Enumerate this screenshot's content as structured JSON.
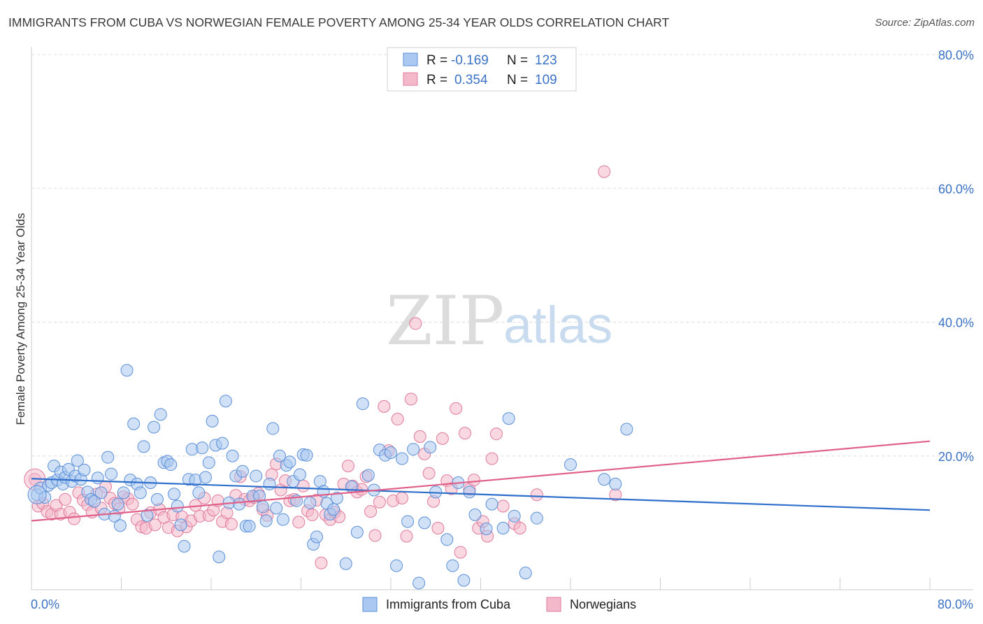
{
  "title": "IMMIGRANTS FROM CUBA VS NORWEGIAN FEMALE POVERTY AMONG 25-34 YEAR OLDS CORRELATION CHART",
  "source": "Source: ZipAtlas.com",
  "watermark": {
    "zip": "ZIP",
    "atlas": "atlas"
  },
  "colors": {
    "cuba_fill": "#aac8f0",
    "cuba_stroke": "#5b8fd8",
    "cuba_line": "#2f6fcc",
    "nor_fill": "#f4b8cb",
    "nor_stroke": "#e07a9c",
    "nor_line": "#e0608a",
    "axis_text": "#3b72c4",
    "grid": "#dddddd"
  },
  "legend": {
    "r_label": "R =",
    "n_label": "N =",
    "rows": [
      {
        "r": "-0.169",
        "n": "123"
      },
      {
        "r": "0.354",
        "n": "109"
      }
    ]
  },
  "chart_data": {
    "type": "scatter",
    "xlabel": "",
    "ylabel": "Female Poverty Among 25-34 Year Olds",
    "xlim": [
      0,
      80
    ],
    "ylim": [
      0,
      80
    ],
    "x_tick_labels": [
      "0.0%",
      "80.0%"
    ],
    "y_tick_values": [
      20,
      40,
      60,
      80
    ],
    "y_tick_labels": [
      "20.0%",
      "40.0%",
      "60.0%",
      "80.0%"
    ],
    "series": [
      {
        "name": "Immigrants from Cuba",
        "trend": {
          "x": [
            0,
            80
          ],
          "y": [
            16.6,
            11.9
          ]
        },
        "points": [
          [
            0.5,
            14.2
          ],
          [
            0.8,
            15.2
          ],
          [
            1.2,
            13.8
          ],
          [
            1.5,
            15.6
          ],
          [
            1.8,
            16.0
          ],
          [
            2.0,
            18.5
          ],
          [
            2.3,
            16.4
          ],
          [
            2.6,
            17.6
          ],
          [
            2.8,
            15.8
          ],
          [
            3.0,
            16.8
          ],
          [
            3.3,
            18.0
          ],
          [
            3.6,
            16.2
          ],
          [
            3.9,
            17.0
          ],
          [
            4.1,
            19.3
          ],
          [
            4.4,
            16.5
          ],
          [
            4.7,
            17.9
          ],
          [
            5.0,
            14.6
          ],
          [
            5.3,
            13.5
          ],
          [
            5.6,
            13.2
          ],
          [
            5.9,
            16.7
          ],
          [
            6.2,
            14.5
          ],
          [
            6.5,
            11.3
          ],
          [
            6.8,
            19.8
          ],
          [
            7.1,
            17.3
          ],
          [
            7.4,
            11.0
          ],
          [
            7.7,
            12.8
          ],
          [
            7.9,
            9.6
          ],
          [
            8.2,
            14.5
          ],
          [
            8.5,
            32.8
          ],
          [
            8.8,
            16.4
          ],
          [
            9.1,
            24.8
          ],
          [
            9.4,
            15.8
          ],
          [
            9.7,
            14.5
          ],
          [
            10.0,
            21.4
          ],
          [
            10.3,
            11.1
          ],
          [
            10.6,
            16.0
          ],
          [
            10.9,
            24.3
          ],
          [
            11.2,
            13.5
          ],
          [
            11.5,
            26.2
          ],
          [
            11.8,
            19.0
          ],
          [
            12.1,
            19.2
          ],
          [
            12.4,
            18.7
          ],
          [
            12.7,
            14.3
          ],
          [
            13.0,
            12.5
          ],
          [
            13.3,
            9.7
          ],
          [
            13.6,
            6.5
          ],
          [
            14.0,
            16.5
          ],
          [
            14.3,
            21.0
          ],
          [
            14.6,
            16.4
          ],
          [
            14.9,
            14.5
          ],
          [
            15.2,
            21.2
          ],
          [
            15.5,
            16.8
          ],
          [
            15.8,
            19.0
          ],
          [
            16.1,
            25.2
          ],
          [
            16.4,
            21.6
          ],
          [
            16.7,
            4.9
          ],
          [
            17.0,
            21.9
          ],
          [
            17.3,
            28.2
          ],
          [
            17.6,
            13.0
          ],
          [
            17.9,
            20.0
          ],
          [
            18.2,
            17.0
          ],
          [
            18.5,
            12.8
          ],
          [
            18.8,
            17.7
          ],
          [
            19.1,
            9.5
          ],
          [
            19.4,
            9.5
          ],
          [
            19.7,
            14.0
          ],
          [
            20.0,
            17.0
          ],
          [
            20.3,
            14.0
          ],
          [
            20.6,
            12.4
          ],
          [
            20.9,
            10.3
          ],
          [
            21.2,
            15.8
          ],
          [
            21.5,
            24.1
          ],
          [
            21.8,
            12.2
          ],
          [
            22.1,
            20.0
          ],
          [
            22.4,
            10.5
          ],
          [
            22.7,
            18.6
          ],
          [
            23.0,
            19.1
          ],
          [
            23.3,
            16.2
          ],
          [
            23.6,
            13.3
          ],
          [
            23.9,
            17.2
          ],
          [
            24.2,
            20.2
          ],
          [
            24.5,
            20.1
          ],
          [
            24.8,
            13.0
          ],
          [
            25.1,
            6.8
          ],
          [
            25.4,
            7.9
          ],
          [
            25.7,
            16.2
          ],
          [
            26.0,
            14.7
          ],
          [
            26.3,
            12.9
          ],
          [
            26.6,
            11.3
          ],
          [
            26.9,
            12.0
          ],
          [
            27.2,
            13.7
          ],
          [
            28.0,
            3.9
          ],
          [
            28.5,
            15.4
          ],
          [
            29.0,
            8.6
          ],
          [
            29.5,
            27.8
          ],
          [
            30.0,
            17.1
          ],
          [
            30.5,
            14.9
          ],
          [
            31.0,
            20.9
          ],
          [
            31.5,
            20.1
          ],
          [
            32.0,
            20.5
          ],
          [
            32.5,
            3.6
          ],
          [
            33.0,
            19.6
          ],
          [
            33.5,
            10.2
          ],
          [
            34.0,
            21.0
          ],
          [
            34.5,
            1.0
          ],
          [
            35.0,
            10.0
          ],
          [
            35.5,
            21.3
          ],
          [
            36.0,
            14.6
          ],
          [
            37.0,
            7.5
          ],
          [
            37.5,
            3.6
          ],
          [
            38.0,
            16.0
          ],
          [
            38.5,
            1.4
          ],
          [
            39.0,
            14.6
          ],
          [
            39.5,
            11.2
          ],
          [
            40.5,
            9.1
          ],
          [
            41.0,
            12.8
          ],
          [
            42.0,
            9.2
          ],
          [
            42.5,
            25.6
          ],
          [
            43.0,
            11.0
          ],
          [
            44.0,
            2.5
          ],
          [
            45.0,
            10.7
          ],
          [
            48.0,
            18.7
          ],
          [
            51.0,
            16.5
          ],
          [
            52.0,
            15.8
          ],
          [
            53.0,
            24.0
          ]
        ]
      },
      {
        "name": "Norwegians",
        "trend": {
          "x": [
            0,
            80
          ],
          "y": [
            10.3,
            22.2
          ]
        },
        "points": [
          [
            0.3,
            16.5
          ],
          [
            0.6,
            12.5
          ],
          [
            1.0,
            12.9
          ],
          [
            1.4,
            11.7
          ],
          [
            1.8,
            11.3
          ],
          [
            2.2,
            12.6
          ],
          [
            2.6,
            11.3
          ],
          [
            3.0,
            13.5
          ],
          [
            3.4,
            11.6
          ],
          [
            3.8,
            10.6
          ],
          [
            4.2,
            14.5
          ],
          [
            4.6,
            13.4
          ],
          [
            5.0,
            12.7
          ],
          [
            5.4,
            11.6
          ],
          [
            5.8,
            14.3
          ],
          [
            6.2,
            12.2
          ],
          [
            6.6,
            15.4
          ],
          [
            7.0,
            13.7
          ],
          [
            7.4,
            12.9
          ],
          [
            7.8,
            12.1
          ],
          [
            8.2,
            13.9
          ],
          [
            8.6,
            13.6
          ],
          [
            9.0,
            12.8
          ],
          [
            9.4,
            10.5
          ],
          [
            9.8,
            9.4
          ],
          [
            10.2,
            9.2
          ],
          [
            10.6,
            11.5
          ],
          [
            11.0,
            9.7
          ],
          [
            11.4,
            12.0
          ],
          [
            11.8,
            10.8
          ],
          [
            12.2,
            9.3
          ],
          [
            12.6,
            11.2
          ],
          [
            13.0,
            8.8
          ],
          [
            13.4,
            10.9
          ],
          [
            13.8,
            9.4
          ],
          [
            14.2,
            10.3
          ],
          [
            14.6,
            12.6
          ],
          [
            15.0,
            11.0
          ],
          [
            15.4,
            13.7
          ],
          [
            15.8,
            11.1
          ],
          [
            16.2,
            11.9
          ],
          [
            16.6,
            13.3
          ],
          [
            17.0,
            10.2
          ],
          [
            17.4,
            11.5
          ],
          [
            17.8,
            9.8
          ],
          [
            18.2,
            14.1
          ],
          [
            18.6,
            16.9
          ],
          [
            19.0,
            13.5
          ],
          [
            19.4,
            13.3
          ],
          [
            19.8,
            13.8
          ],
          [
            20.2,
            14.4
          ],
          [
            20.6,
            12.0
          ],
          [
            21.0,
            11.1
          ],
          [
            21.4,
            17.2
          ],
          [
            21.8,
            18.8
          ],
          [
            22.2,
            14.9
          ],
          [
            22.6,
            16.3
          ],
          [
            23.0,
            13.3
          ],
          [
            23.4,
            13.5
          ],
          [
            23.8,
            10.1
          ],
          [
            24.2,
            15.5
          ],
          [
            24.6,
            11.8
          ],
          [
            25.0,
            11.2
          ],
          [
            25.4,
            13.4
          ],
          [
            25.8,
            4.0
          ],
          [
            26.2,
            11.2
          ],
          [
            26.6,
            10.5
          ],
          [
            27.0,
            11.6
          ],
          [
            27.4,
            10.9
          ],
          [
            27.8,
            15.8
          ],
          [
            28.2,
            18.5
          ],
          [
            28.6,
            15.5
          ],
          [
            29.0,
            14.6
          ],
          [
            29.4,
            15.0
          ],
          [
            29.8,
            16.9
          ],
          [
            30.2,
            11.7
          ],
          [
            30.6,
            8.1
          ],
          [
            31.0,
            13.1
          ],
          [
            31.4,
            27.4
          ],
          [
            31.8,
            20.8
          ],
          [
            32.2,
            13.3
          ],
          [
            32.6,
            25.5
          ],
          [
            33.0,
            13.7
          ],
          [
            33.4,
            8.0
          ],
          [
            33.8,
            28.5
          ],
          [
            34.2,
            39.8
          ],
          [
            34.6,
            22.9
          ],
          [
            35.0,
            20.3
          ],
          [
            35.4,
            17.4
          ],
          [
            35.8,
            13.2
          ],
          [
            36.2,
            9.2
          ],
          [
            36.6,
            22.6
          ],
          [
            37.0,
            16.3
          ],
          [
            37.4,
            15.1
          ],
          [
            37.8,
            27.1
          ],
          [
            38.2,
            5.6
          ],
          [
            38.6,
            23.4
          ],
          [
            39.0,
            15.0
          ],
          [
            39.4,
            16.4
          ],
          [
            39.8,
            9.2
          ],
          [
            40.2,
            10.2
          ],
          [
            40.6,
            8.0
          ],
          [
            41.0,
            19.6
          ],
          [
            41.4,
            23.3
          ],
          [
            42.0,
            12.5
          ],
          [
            43.0,
            9.9
          ],
          [
            43.5,
            9.2
          ],
          [
            45.0,
            14.2
          ],
          [
            51.0,
            62.5
          ],
          [
            52.0,
            14.2
          ]
        ]
      }
    ]
  },
  "bottom_legend": [
    "Immigrants from Cuba",
    "Norwegians"
  ]
}
